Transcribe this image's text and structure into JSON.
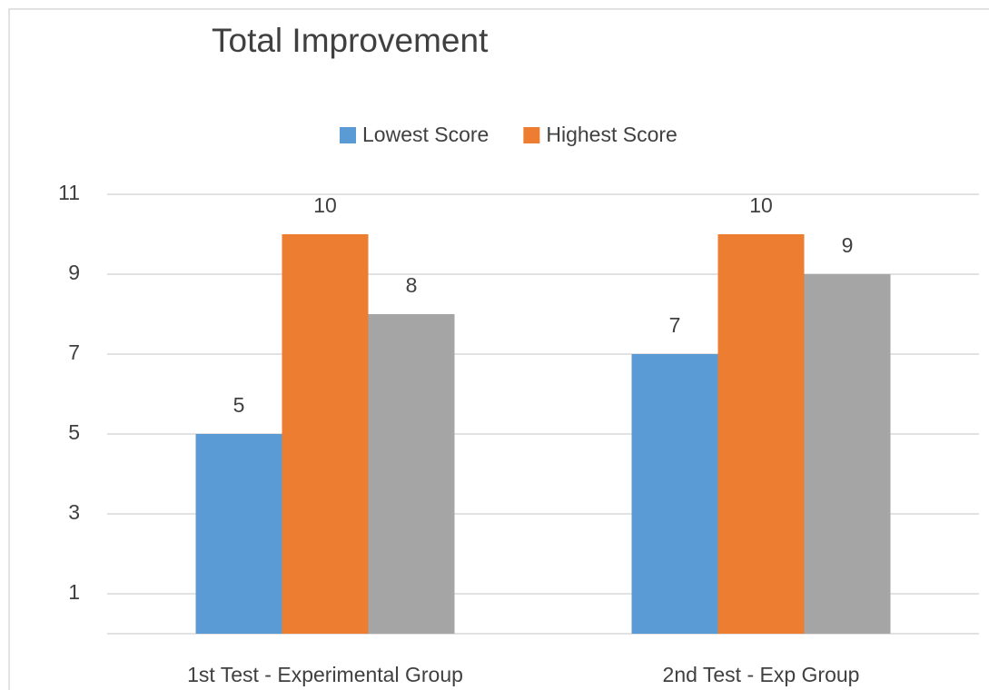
{
  "chart_data": {
    "type": "bar",
    "title": "Total Improvement",
    "categories": [
      "1st Test - Experimental Group",
      "2nd Test - Exp Group"
    ],
    "series": [
      {
        "name": "Lowest Score",
        "color": "#5b9bd5",
        "values": [
          5,
          7
        ]
      },
      {
        "name": "Highest Score",
        "color": "#ed7d31",
        "values": [
          10,
          10
        ]
      },
      {
        "color": "#a5a5a5",
        "values": [
          8,
          9
        ]
      }
    ],
    "ylim": [
      0,
      11
    ],
    "yticks": [
      1,
      3,
      5,
      7,
      9,
      11
    ],
    "grid": true,
    "legend": "top"
  }
}
